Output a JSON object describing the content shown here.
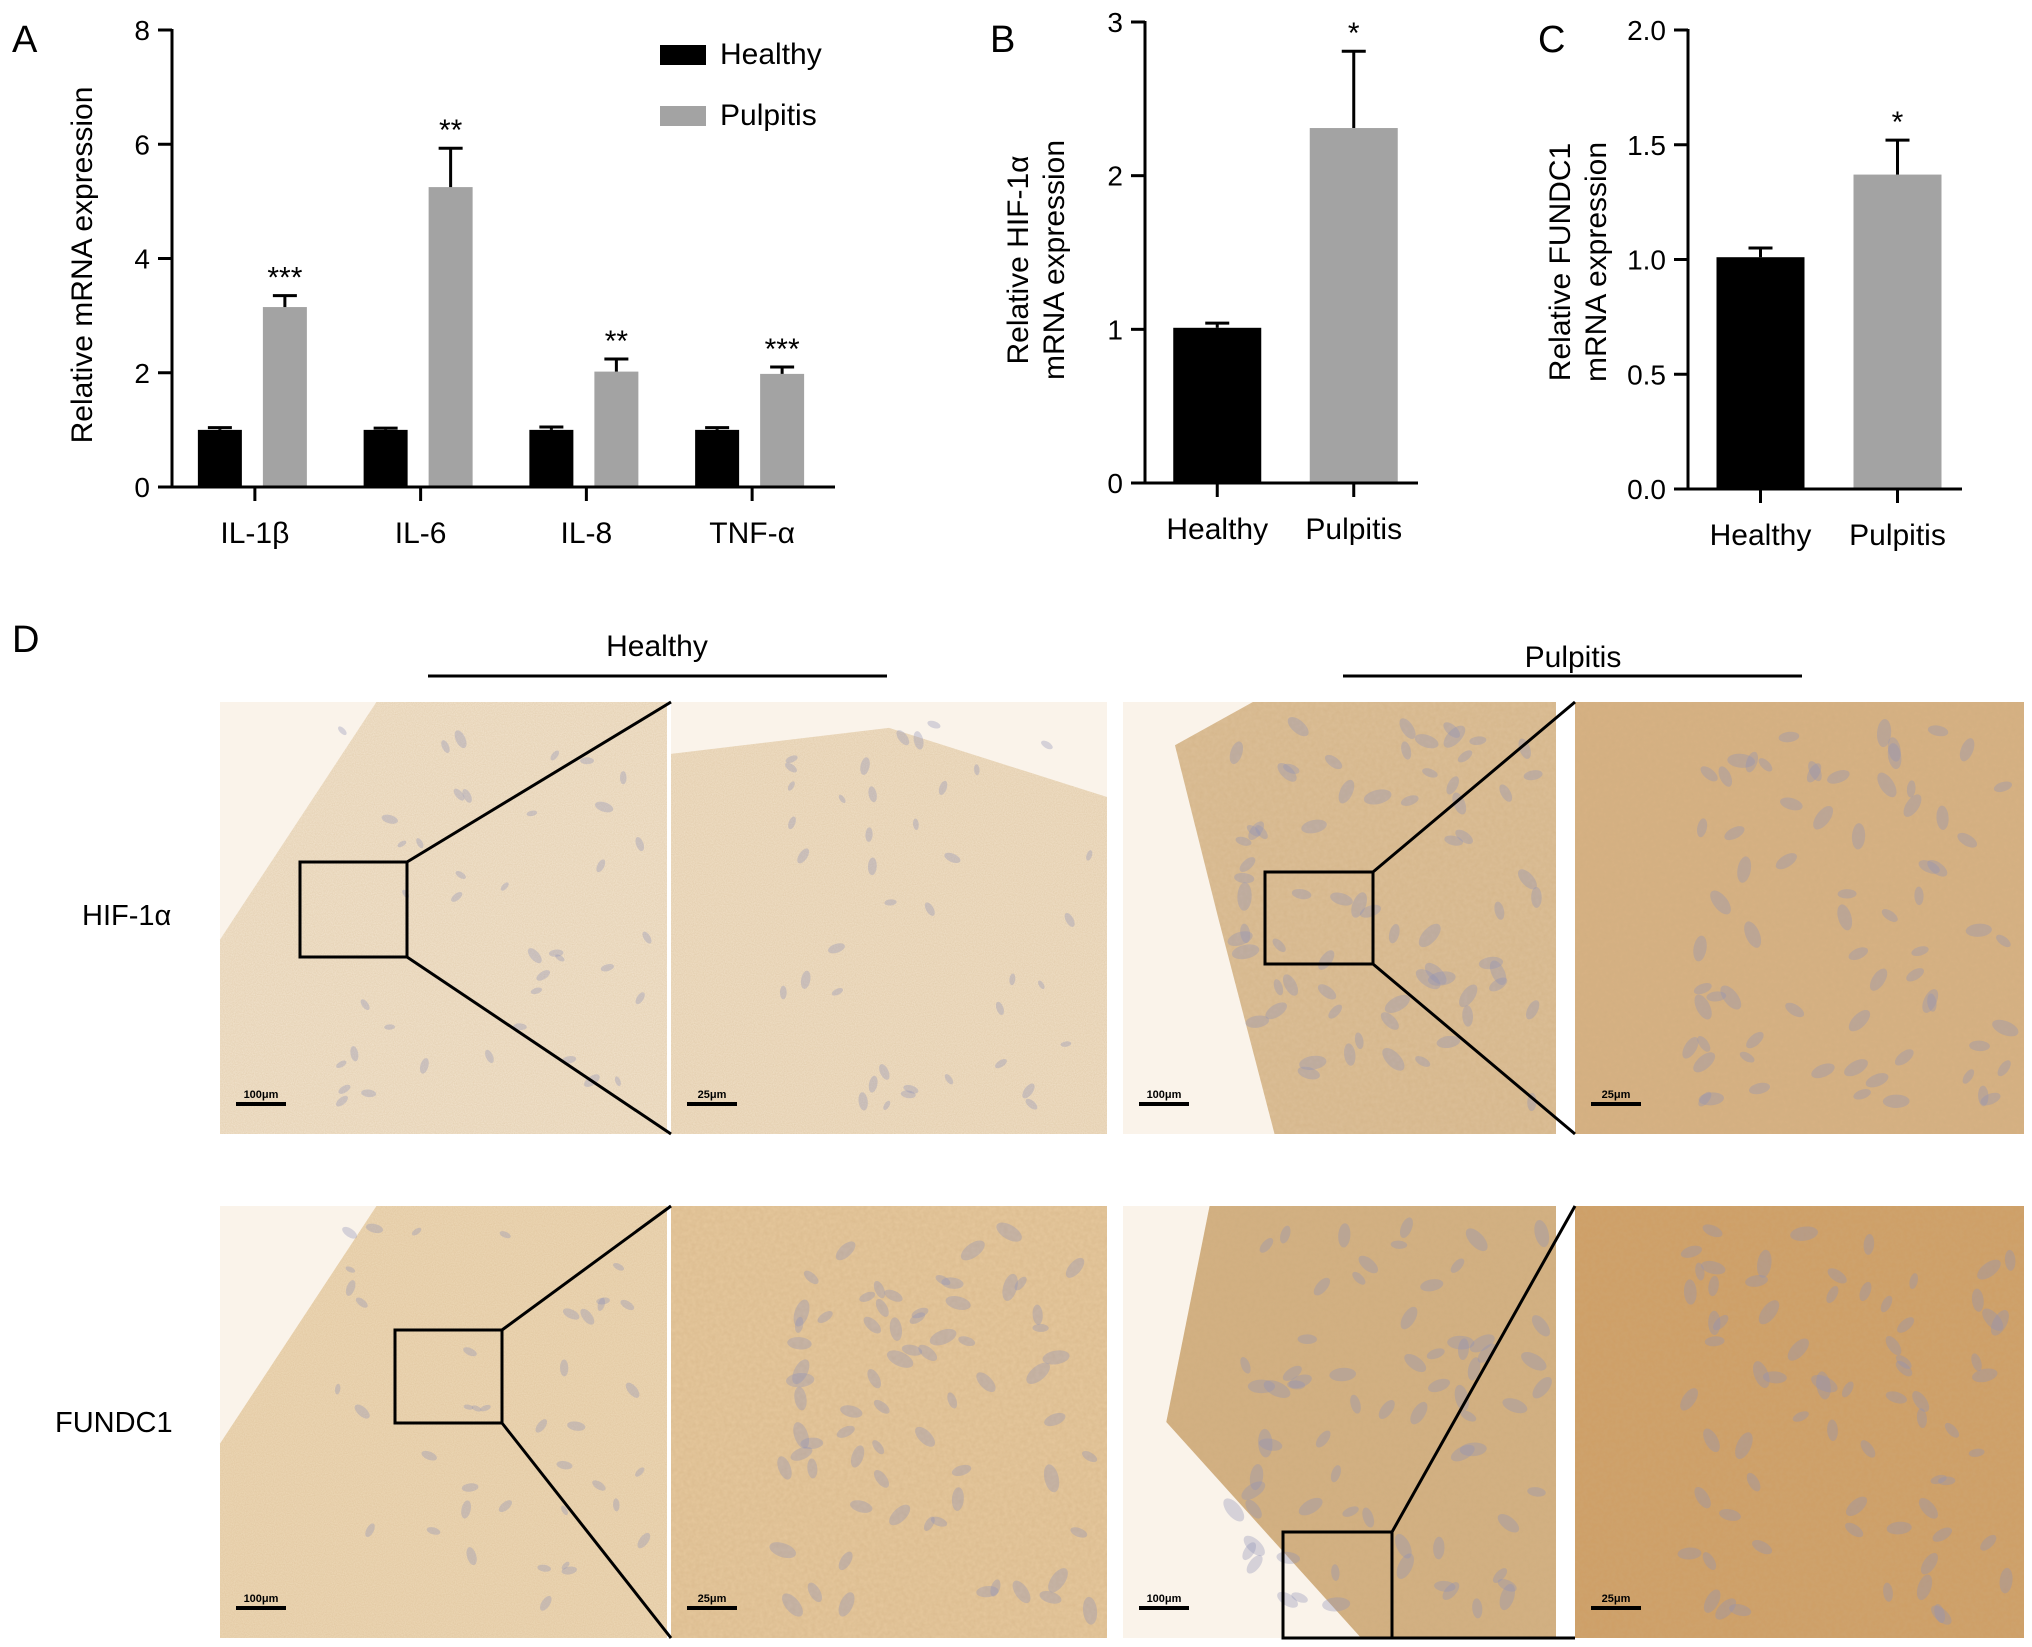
{
  "chart_data": [
    {
      "panel": "A",
      "type": "bar",
      "categories": [
        "IL-1β",
        "IL-6",
        "IL-8",
        "TNF-α"
      ],
      "series": [
        {
          "name": "Healthy",
          "values": [
            1.0,
            1.0,
            1.0,
            1.0
          ],
          "errors": [
            0.04,
            0.03,
            0.05,
            0.04
          ],
          "color": "#000000"
        },
        {
          "name": "Pulpitis",
          "values": [
            3.15,
            5.25,
            2.02,
            1.98
          ],
          "errors": [
            0.2,
            0.68,
            0.22,
            0.12
          ],
          "color": "#a3a3a3"
        }
      ],
      "significance": [
        "***",
        "**",
        "**",
        "***"
      ],
      "ylabel": "Relative mRNA expression",
      "ylim": [
        0,
        8
      ],
      "yticks": [
        "0",
        "2",
        "4",
        "6",
        "8"
      ],
      "legend": {
        "placement": "top-right",
        "entries": [
          "Healthy",
          "Pulpitis"
        ]
      }
    },
    {
      "panel": "B",
      "type": "bar",
      "categories": [
        "Healthy",
        "Pulpitis"
      ],
      "values": [
        1.01,
        2.31
      ],
      "errors": [
        0.03,
        0.5
      ],
      "colors": [
        "#000000",
        "#a3a3a3"
      ],
      "significance": [
        "",
        "*"
      ],
      "ylabel_lines": [
        "Relative HIF-1α",
        "mRNA expression"
      ],
      "ylim": [
        0,
        3
      ],
      "yticks": [
        "0",
        "1",
        "2",
        "3"
      ]
    },
    {
      "panel": "C",
      "type": "bar",
      "categories": [
        "Healthy",
        "Pulpitis"
      ],
      "values": [
        1.01,
        1.37
      ],
      "errors": [
        0.04,
        0.15
      ],
      "colors": [
        "#000000",
        "#a3a3a3"
      ],
      "significance": [
        "",
        "*"
      ],
      "ylabel_lines": [
        "Relative FUNDC1",
        "mRNA expression"
      ],
      "ylim": [
        0,
        2.0
      ],
      "yticks": [
        "0.0",
        "0.5",
        "1.0",
        "1.5",
        "2.0"
      ]
    }
  ],
  "panel_d": {
    "letter": "D",
    "groups": [
      "Healthy",
      "Pulpitis"
    ],
    "rows": [
      "HIF-1α",
      "FUNDC1"
    ],
    "scale_low_mag": "100μm",
    "scale_high_mag": "25μm",
    "tissue_colors": {
      "healthy_hif_low": "#f2e4cf",
      "healthy_hif_high": "#f0e0c8",
      "pulpitis_hif_low": "#dcbf97",
      "pulpitis_hif_high": "#d7b284",
      "healthy_fundc_low": "#eed9b8",
      "healthy_fundc_high": "#e6c89d",
      "pulpitis_fundc_low": "#d3b183",
      "pulpitis_fundc_high": "#cf9f66",
      "nucleus": "#8f92b8",
      "background": "#faf3ea"
    }
  }
}
